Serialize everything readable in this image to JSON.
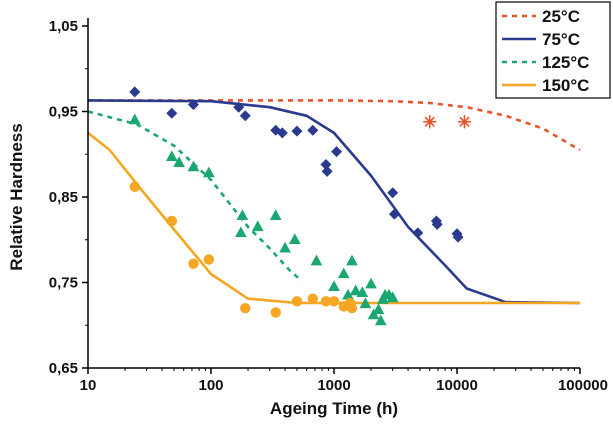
{
  "chart_data": {
    "type": "scatter",
    "title": "",
    "xlabel": "Ageing Time (h)",
    "ylabel": "Relative Hardness",
    "xscale": "log",
    "xlim": [
      10,
      100000
    ],
    "ylim": [
      0.65,
      1.05
    ],
    "xticks": [
      10,
      100,
      1000,
      10000,
      100000
    ],
    "xtick_labels": [
      "10",
      "100",
      "1000",
      "10000",
      "100000"
    ],
    "yticks": [
      0.65,
      0.75,
      0.85,
      0.95,
      1.05
    ],
    "ytick_labels": [
      "0,65",
      "0,75",
      "0,85",
      "0,95",
      "1,05"
    ],
    "grid": false,
    "legend_position": "top-right",
    "series": [
      {
        "name": "25°C",
        "color": "#e8542a",
        "line_style": "dotted",
        "marker": "asterisk",
        "fit_line": [
          [
            10,
            0.963
          ],
          [
            100,
            0.963
          ],
          [
            1000,
            0.963
          ],
          [
            3000,
            0.962
          ],
          [
            6000,
            0.96
          ],
          [
            12000,
            0.955
          ],
          [
            25000,
            0.945
          ],
          [
            50000,
            0.93
          ],
          [
            100000,
            0.905
          ]
        ],
        "points": [
          [
            6000,
            0.938
          ],
          [
            11500,
            0.938
          ]
        ]
      },
      {
        "name": "75°C",
        "color": "#2b3a8f",
        "line_style": "solid",
        "marker": "diamond",
        "fit_line": [
          [
            10,
            0.963
          ],
          [
            100,
            0.962
          ],
          [
            300,
            0.955
          ],
          [
            600,
            0.945
          ],
          [
            1000,
            0.925
          ],
          [
            2000,
            0.875
          ],
          [
            4000,
            0.815
          ],
          [
            8000,
            0.77
          ],
          [
            12000,
            0.743
          ],
          [
            25000,
            0.727
          ],
          [
            100000,
            0.726
          ]
        ],
        "points": [
          [
            24,
            0.973
          ],
          [
            48,
            0.948
          ],
          [
            72,
            0.958
          ],
          [
            168,
            0.955
          ],
          [
            190,
            0.945
          ],
          [
            336,
            0.928
          ],
          [
            380,
            0.925
          ],
          [
            500,
            0.927
          ],
          [
            672,
            0.928
          ],
          [
            860,
            0.888
          ],
          [
            880,
            0.88
          ],
          [
            1050,
            0.903
          ],
          [
            3000,
            0.855
          ],
          [
            3100,
            0.83
          ],
          [
            4800,
            0.808
          ],
          [
            6800,
            0.822
          ],
          [
            6900,
            0.818
          ],
          [
            10000,
            0.807
          ],
          [
            10200,
            0.803
          ]
        ]
      },
      {
        "name": "125°C",
        "color": "#1aa870",
        "line_style": "dotted",
        "marker": "triangle",
        "fit_line": [
          [
            10,
            0.95
          ],
          [
            25,
            0.935
          ],
          [
            50,
            0.91
          ],
          [
            100,
            0.87
          ],
          [
            200,
            0.815
          ],
          [
            300,
            0.79
          ],
          [
            450,
            0.762
          ],
          [
            550,
            0.752
          ]
        ],
        "points": [
          [
            24,
            0.94
          ],
          [
            48,
            0.897
          ],
          [
            55,
            0.89
          ],
          [
            72,
            0.885
          ],
          [
            96,
            0.878
          ],
          [
            180,
            0.828
          ],
          [
            175,
            0.808
          ],
          [
            240,
            0.815
          ],
          [
            336,
            0.828
          ],
          [
            400,
            0.79
          ],
          [
            480,
            0.8
          ],
          [
            720,
            0.775
          ],
          [
            1000,
            0.745
          ],
          [
            1200,
            0.76
          ],
          [
            1300,
            0.735
          ],
          [
            1400,
            0.775
          ],
          [
            1500,
            0.74
          ],
          [
            1700,
            0.738
          ],
          [
            1800,
            0.725
          ],
          [
            2000,
            0.748
          ],
          [
            2100,
            0.712
          ],
          [
            2300,
            0.718
          ],
          [
            2400,
            0.705
          ],
          [
            2500,
            0.73
          ],
          [
            2600,
            0.735
          ],
          [
            2800,
            0.735
          ],
          [
            3000,
            0.732
          ]
        ]
      },
      {
        "name": "150°C",
        "color": "#f5a623",
        "line_style": "solid",
        "marker": "circle",
        "fit_line": [
          [
            10,
            0.925
          ],
          [
            15,
            0.905
          ],
          [
            25,
            0.865
          ],
          [
            50,
            0.812
          ],
          [
            100,
            0.76
          ],
          [
            200,
            0.731
          ],
          [
            500,
            0.726
          ],
          [
            2000,
            0.726
          ],
          [
            100000,
            0.726
          ]
        ],
        "points": [
          [
            24,
            0.862
          ],
          [
            48,
            0.822
          ],
          [
            72,
            0.772
          ],
          [
            96,
            0.777
          ],
          [
            190,
            0.72
          ],
          [
            336,
            0.715
          ],
          [
            500,
            0.728
          ],
          [
            672,
            0.731
          ],
          [
            860,
            0.728
          ],
          [
            1000,
            0.728
          ],
          [
            1200,
            0.722
          ],
          [
            1350,
            0.726
          ],
          [
            1400,
            0.72
          ]
        ]
      }
    ]
  }
}
